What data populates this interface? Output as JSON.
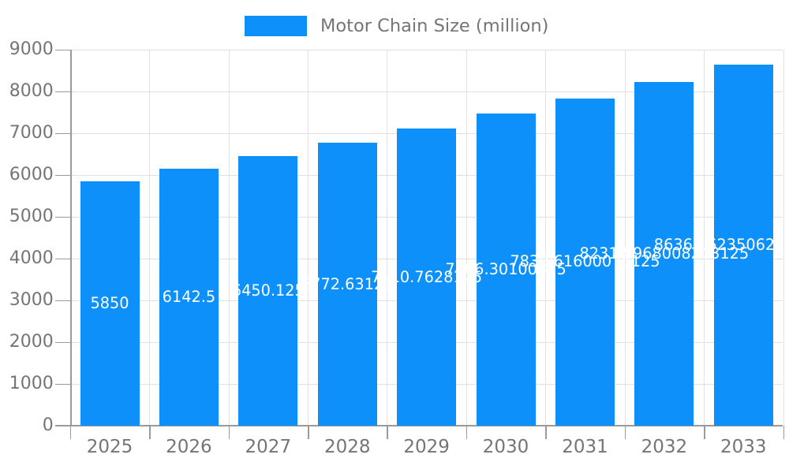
{
  "legend": {
    "label": "Motor Chain Size (million)"
  },
  "chart_data": {
    "type": "bar",
    "title": "Motor Chain Size (million)",
    "series_name": "Motor Chain Size (million)",
    "categories": [
      "2025",
      "2026",
      "2027",
      "2028",
      "2029",
      "2030",
      "2031",
      "2032",
      "2033"
    ],
    "values": [
      5850,
      6142.5,
      6450.125,
      6772.63125,
      7110.7628125,
      7466.30100625,
      7839.61600078125,
      8231.596800820313,
      8636.16235062503
    ],
    "value_labels": [
      "5850",
      "6142.5",
      "6450.125",
      "6772.63125",
      "7110.7628125",
      "7466.30100625",
      "7839.61600078125",
      "8231.5968008203125",
      "8636.16235062503125"
    ],
    "xlabel": "",
    "ylabel": "",
    "ylim": [
      0,
      9000
    ],
    "y_ticks": [
      0,
      1000,
      2000,
      3000,
      4000,
      5000,
      6000,
      7000,
      8000,
      9000
    ],
    "grid": true,
    "legend_position": "top-center",
    "bar_color": "#0d90f9",
    "value_label_color": "#ffffff",
    "axis_text_color": "#757575",
    "gridline_color": "#e0e0e0",
    "axis_line_color": "#9a9a9a"
  }
}
